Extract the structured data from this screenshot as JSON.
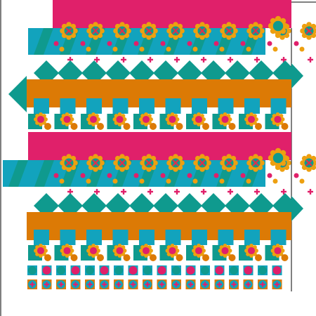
{
  "colors": {
    "background": "#ffffff",
    "frame": "#000000",
    "magenta": "#e0206a",
    "teal": "#0f9a8e",
    "cyan": "#12a3bd",
    "orange": "#dc7a05",
    "amber": "#eda010",
    "redX": "#e0304a"
  },
  "pattern": {
    "description_visible_text": "",
    "motifs": [
      "flower-icon",
      "cross-icon",
      "diamond-icon",
      "square-icon",
      "circle-icon",
      "plus-icon"
    ]
  }
}
